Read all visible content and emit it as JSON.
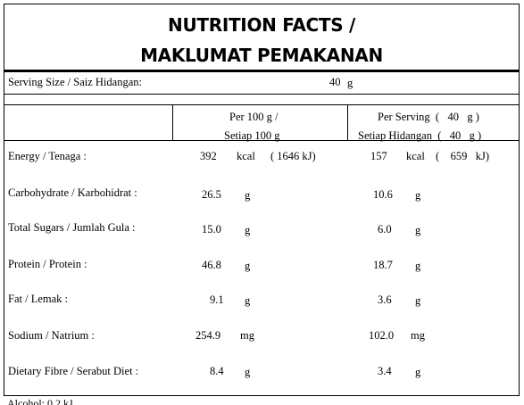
{
  "title": {
    "line1": "NUTRITION FACTS /",
    "line2": "MAKLUMAT PEMAKANAN"
  },
  "serving": {
    "label": "Serving Size / Saiz Hidangan:",
    "value": "40",
    "unit": "g"
  },
  "headers": {
    "per100_line1": "Per 100 g /",
    "per100_line2": "Setiap 100 g",
    "serv_line1": "Per Serving  (   40   g )",
    "serv_line2": "Setiap Hidangan  (   40   g )"
  },
  "rows": [
    {
      "label": "Energy / Tenaga :",
      "v100": "392",
      "u100": "kcal",
      "k100": "( 1646 kJ)",
      "vs": "157",
      "us": "kcal",
      "ks": "(    659   kJ)"
    },
    {
      "label": "Carbohydrate / Karbohidrat :",
      "v100": "26.5",
      "u100": "g",
      "vs": "10.6",
      "us": "g"
    },
    {
      "label": "Total Sugars / Jumlah Gula :",
      "v100": "15.0",
      "u100": "g",
      "vs": "6.0",
      "us": "g"
    },
    {
      "label": "Protein / Protein :",
      "v100": "46.8",
      "u100": "g",
      "vs": "18.7",
      "us": "g"
    },
    {
      "label": "Fat / Lemak :",
      "v100": "9.1",
      "u100": "g",
      "vs": "3.6",
      "us": "g"
    },
    {
      "label": "Sodium / Natrium :",
      "v100": "254.9",
      "u100": "mg",
      "vs": "102.0",
      "us": "mg"
    },
    {
      "label": "Dietary Fibre / Serabut Diet :",
      "v100": "8.4",
      "u100": "g",
      "vs": "3.4",
      "us": "g"
    }
  ],
  "footer": {
    "cut_text": "Alcohol: 0.2 kJ"
  }
}
